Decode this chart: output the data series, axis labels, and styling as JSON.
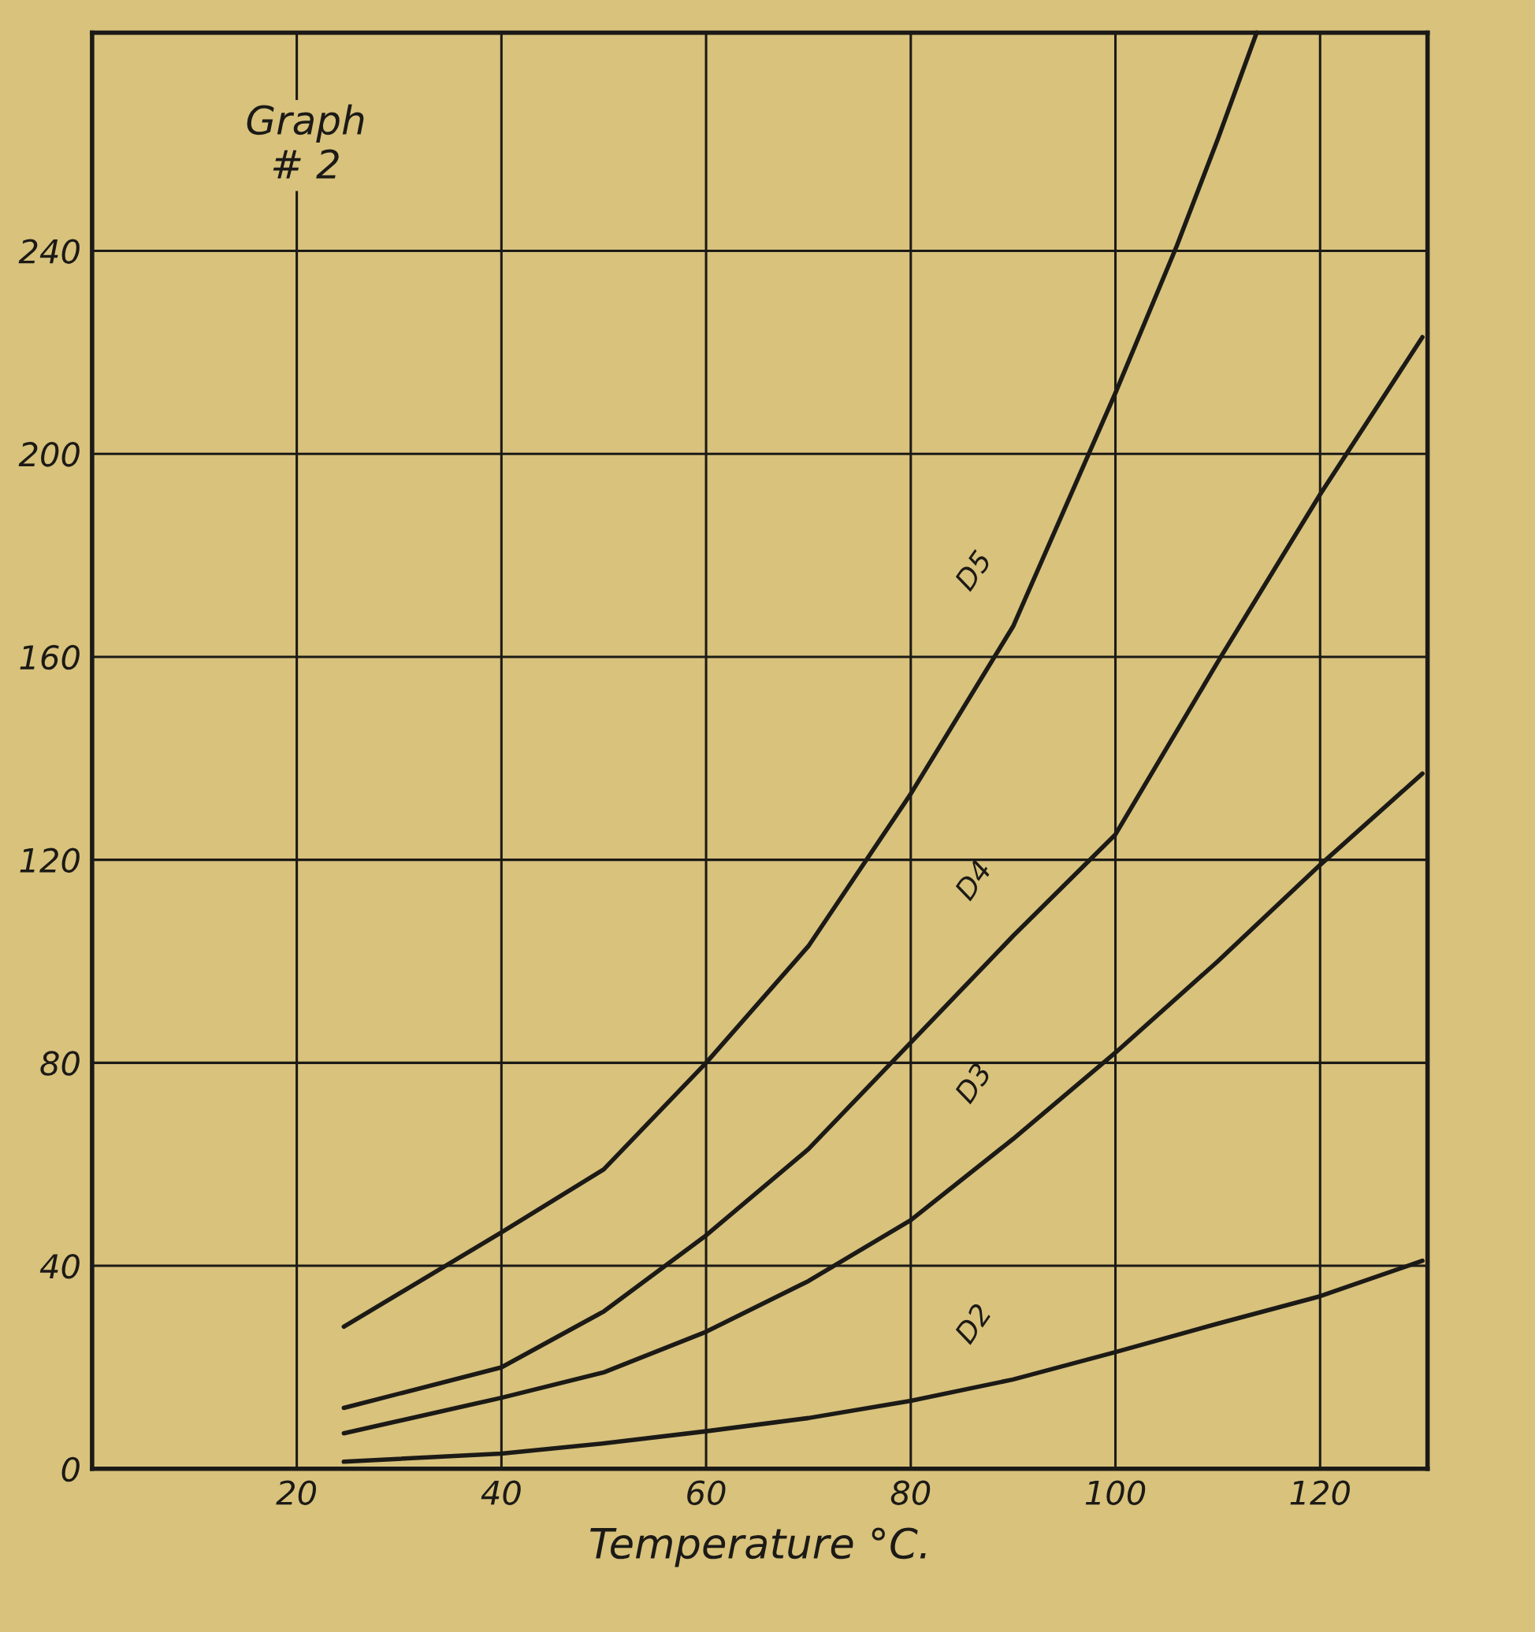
{
  "chart_data": {
    "type": "line",
    "title": "Graph\n# 2",
    "xlabel": "Temperature °C.",
    "xlim": [
      0,
      130.5
    ],
    "ylim": [
      0,
      283
    ],
    "xticks": [
      20,
      40,
      60,
      80,
      100,
      120
    ],
    "yticks": [
      0,
      40,
      80,
      120,
      160,
      200,
      240
    ],
    "grid": true,
    "marker": "none",
    "line_style": "solid",
    "legend": false,
    "series": [
      {
        "name": "D5",
        "color": "#1c1a16",
        "x": [
          24.6,
          40,
          50,
          60,
          70,
          80,
          90,
          100,
          106,
          110,
          113.8
        ],
        "values": [
          28,
          46.6,
          59,
          80,
          103,
          133,
          166,
          212,
          241,
          262,
          283
        ]
      },
      {
        "name": "D4",
        "color": "#1c1a16",
        "x": [
          24.6,
          40,
          50,
          60,
          70,
          80,
          90,
          100,
          110,
          120,
          130
        ],
        "values": [
          12,
          20,
          31,
          46,
          63,
          84,
          105,
          125,
          159,
          192,
          223
        ]
      },
      {
        "name": "D3",
        "color": "#1c1a16",
        "x": [
          24.6,
          40,
          50,
          60,
          70,
          80,
          90,
          100,
          110,
          120,
          130
        ],
        "values": [
          7,
          14,
          19,
          27,
          37,
          49,
          65,
          82,
          100,
          119,
          137
        ]
      },
      {
        "name": "D2",
        "color": "#1c1a16",
        "x": [
          24.6,
          40,
          50,
          60,
          70,
          80,
          90,
          100,
          110,
          120,
          130
        ],
        "values": [
          1.4,
          3,
          5,
          7.4,
          10,
          13.4,
          17.6,
          23,
          28.6,
          34,
          41
        ]
      }
    ]
  }
}
